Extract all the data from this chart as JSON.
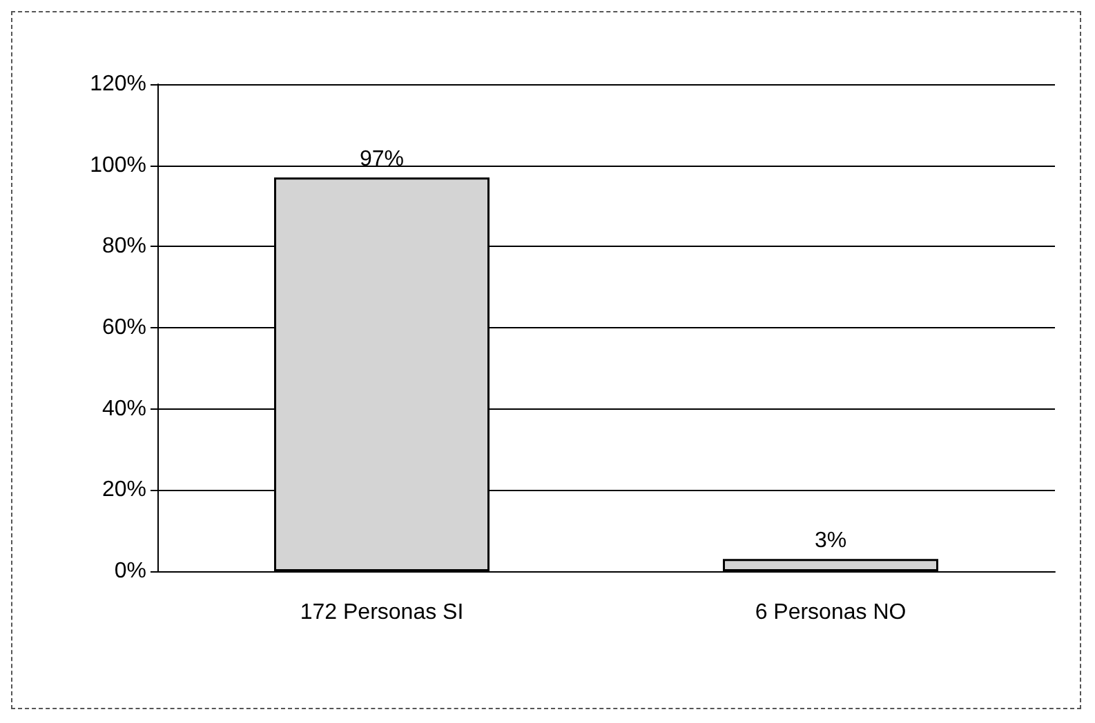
{
  "chart_data": {
    "type": "bar",
    "categories": [
      "172 Personas SI",
      "6 Personas NO"
    ],
    "values": [
      97,
      3
    ],
    "color": "#d4d4d4",
    "value_labels": [
      "97%",
      "3%"
    ],
    "ylim": [
      0,
      120
    ],
    "yticks": [
      {
        "value": 0,
        "label": "0%"
      },
      {
        "value": 20,
        "label": "20%"
      },
      {
        "value": 40,
        "label": "40%"
      },
      {
        "value": 60,
        "label": "60%"
      },
      {
        "value": 80,
        "label": "80%"
      },
      {
        "value": 100,
        "label": "100%"
      },
      {
        "value": 120,
        "label": "120%"
      }
    ],
    "grid": "y"
  }
}
